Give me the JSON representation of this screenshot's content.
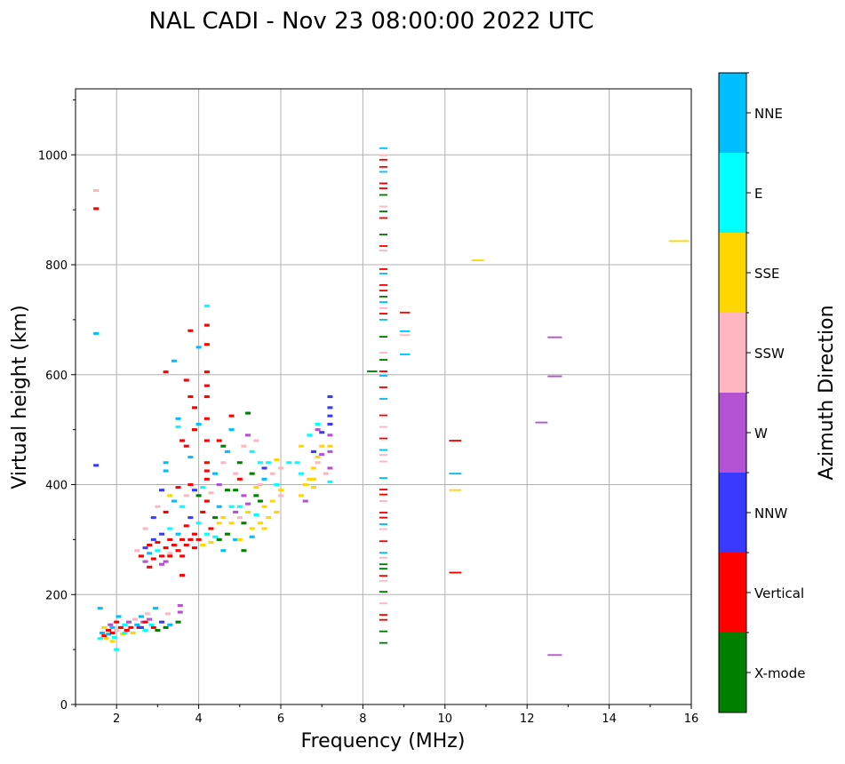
{
  "chart_data": {
    "type": "heatmap",
    "title": "NAL CADI - Nov 23 08:00:00 2022 UTC",
    "xlabel": "Frequency (MHz)",
    "ylabel": "Virtual height (km)",
    "xlim": [
      1,
      16
    ],
    "ylim": [
      0,
      1120
    ],
    "xticks": [
      2,
      4,
      6,
      8,
      10,
      12,
      14,
      16
    ],
    "yticks": [
      0,
      200,
      400,
      600,
      800,
      1000
    ],
    "grid": true,
    "colorbar": {
      "label": "Azimuth Direction",
      "categories": [
        "X-mode",
        "Vertical",
        "NNW",
        "W",
        "SSW",
        "SSE",
        "E",
        "NNE"
      ],
      "colors": [
        "#008000",
        "#ff0000",
        "#3a3aff",
        "#b452d4",
        "#ffb6c1",
        "#ffd700",
        "#00ffff",
        "#00bfff"
      ]
    },
    "bin_width_mhz": 0.13,
    "bin_height_km": 5,
    "cells": [
      [
        1.6,
        120,
        6
      ],
      [
        1.65,
        130,
        7
      ],
      [
        1.7,
        125,
        1
      ],
      [
        1.7,
        140,
        5
      ],
      [
        1.75,
        120,
        5
      ],
      [
        1.8,
        135,
        1
      ],
      [
        1.8,
        128,
        7
      ],
      [
        1.85,
        145,
        3
      ],
      [
        1.9,
        130,
        1
      ],
      [
        1.9,
        140,
        7
      ],
      [
        1.95,
        122,
        6
      ],
      [
        2.0,
        150,
        1
      ],
      [
        2.0,
        135,
        4
      ],
      [
        2.05,
        160,
        7
      ],
      [
        2.1,
        140,
        1
      ],
      [
        2.15,
        128,
        5
      ],
      [
        2.2,
        145,
        6
      ],
      [
        2.25,
        135,
        1
      ],
      [
        2.3,
        150,
        3
      ],
      [
        2.35,
        140,
        1
      ],
      [
        2.4,
        130,
        5
      ],
      [
        2.45,
        155,
        4
      ],
      [
        2.5,
        145,
        7
      ],
      [
        2.55,
        140,
        1
      ],
      [
        2.6,
        160,
        7
      ],
      [
        2.65,
        150,
        3
      ],
      [
        2.7,
        135,
        6
      ],
      [
        2.75,
        165,
        4
      ],
      [
        2.8,
        155,
        3
      ],
      [
        2.85,
        145,
        6
      ],
      [
        2.9,
        140,
        1
      ],
      [
        2.95,
        175,
        7
      ],
      [
        3.0,
        135,
        0
      ],
      [
        3.1,
        150,
        2
      ],
      [
        3.2,
        140,
        0
      ],
      [
        3.25,
        165,
        4
      ],
      [
        3.3,
        145,
        7
      ],
      [
        3.5,
        150,
        0
      ],
      [
        3.55,
        180,
        3
      ],
      [
        3.55,
        168,
        3
      ],
      [
        1.6,
        175,
        7
      ],
      [
        2.0,
        100,
        6
      ],
      [
        1.9,
        115,
        5
      ],
      [
        2.2,
        130,
        6
      ],
      [
        2.6,
        140,
        2
      ],
      [
        2.7,
        150,
        1
      ],
      [
        2.5,
        280,
        4
      ],
      [
        2.6,
        270,
        1
      ],
      [
        2.7,
        285,
        2
      ],
      [
        2.7,
        260,
        3
      ],
      [
        2.8,
        290,
        1
      ],
      [
        2.8,
        275,
        7
      ],
      [
        2.9,
        265,
        1
      ],
      [
        2.9,
        300,
        2
      ],
      [
        3.0,
        280,
        6
      ],
      [
        3.0,
        295,
        1
      ],
      [
        3.1,
        270,
        1
      ],
      [
        3.1,
        310,
        2
      ],
      [
        3.2,
        285,
        1
      ],
      [
        3.2,
        260,
        3
      ],
      [
        3.3,
        300,
        1
      ],
      [
        3.3,
        320,
        6
      ],
      [
        3.3,
        275,
        4
      ],
      [
        3.4,
        290,
        1
      ],
      [
        3.5,
        280,
        1
      ],
      [
        3.5,
        310,
        7
      ],
      [
        3.6,
        300,
        1
      ],
      [
        3.6,
        270,
        1
      ],
      [
        3.7,
        290,
        1
      ],
      [
        3.7,
        325,
        1
      ],
      [
        3.8,
        300,
        1
      ],
      [
        3.8,
        340,
        2
      ],
      [
        3.9,
        285,
        1
      ],
      [
        3.9,
        310,
        1
      ],
      [
        4.0,
        300,
        1
      ],
      [
        4.0,
        330,
        6
      ],
      [
        4.1,
        290,
        5
      ],
      [
        4.1,
        350,
        1
      ],
      [
        4.2,
        310,
        6
      ],
      [
        4.2,
        370,
        1
      ],
      [
        4.3,
        320,
        1
      ],
      [
        4.3,
        295,
        5
      ],
      [
        4.4,
        340,
        0
      ],
      [
        4.4,
        305,
        6
      ],
      [
        4.5,
        330,
        5
      ],
      [
        4.5,
        360,
        7
      ],
      [
        2.9,
        340,
        2
      ],
      [
        3.0,
        360,
        4
      ],
      [
        3.1,
        390,
        2
      ],
      [
        3.2,
        350,
        1
      ],
      [
        3.3,
        380,
        5
      ],
      [
        3.4,
        370,
        7
      ],
      [
        3.5,
        395,
        1
      ],
      [
        3.6,
        360,
        6
      ],
      [
        3.7,
        380,
        4
      ],
      [
        3.8,
        400,
        1
      ],
      [
        3.9,
        390,
        2
      ],
      [
        4.0,
        380,
        0
      ],
      [
        4.1,
        395,
        6
      ],
      [
        4.2,
        410,
        1
      ],
      [
        4.3,
        385,
        4
      ],
      [
        4.4,
        420,
        7
      ],
      [
        4.5,
        400,
        3
      ],
      [
        2.7,
        320,
        4
      ],
      [
        2.8,
        250,
        1
      ],
      [
        3.2,
        440,
        7
      ],
      [
        3.2,
        425,
        7
      ],
      [
        3.5,
        520,
        7
      ],
      [
        3.5,
        505,
        6
      ],
      [
        3.6,
        480,
        1
      ],
      [
        3.7,
        470,
        1
      ],
      [
        3.7,
        590,
        1
      ],
      [
        3.8,
        560,
        1
      ],
      [
        3.8,
        450,
        7
      ],
      [
        3.9,
        540,
        1
      ],
      [
        3.9,
        500,
        1
      ],
      [
        4.0,
        510,
        7
      ],
      [
        4.2,
        690,
        1
      ],
      [
        4.2,
        655,
        1
      ],
      [
        4.2,
        605,
        1
      ],
      [
        4.2,
        580,
        1
      ],
      [
        4.2,
        560,
        1
      ],
      [
        4.2,
        520,
        1
      ],
      [
        4.2,
        480,
        1
      ],
      [
        4.2,
        440,
        1
      ],
      [
        4.2,
        425,
        1
      ],
      [
        3.4,
        625,
        7
      ],
      [
        3.2,
        605,
        1
      ],
      [
        3.8,
        680,
        1
      ],
      [
        4.0,
        650,
        7
      ],
      [
        4.2,
        725,
        6
      ],
      [
        3.6,
        235,
        1
      ],
      [
        3.3,
        270,
        1
      ],
      [
        3.1,
        255,
        3
      ],
      [
        4.5,
        480,
        1
      ],
      [
        4.6,
        440,
        4
      ],
      [
        4.6,
        470,
        0
      ],
      [
        4.7,
        460,
        7
      ],
      [
        4.8,
        525,
        1
      ],
      [
        4.8,
        500,
        7
      ],
      [
        4.9,
        420,
        4
      ],
      [
        4.9,
        390,
        0
      ],
      [
        5.0,
        440,
        0
      ],
      [
        5.0,
        410,
        1
      ],
      [
        5.1,
        470,
        4
      ],
      [
        5.1,
        380,
        3
      ],
      [
        5.2,
        530,
        0
      ],
      [
        5.2,
        490,
        3
      ],
      [
        5.3,
        460,
        6
      ],
      [
        5.3,
        420,
        0
      ],
      [
        5.4,
        480,
        4
      ],
      [
        5.4,
        380,
        0
      ],
      [
        5.5,
        440,
        6
      ],
      [
        5.5,
        400,
        4
      ],
      [
        5.6,
        430,
        2
      ],
      [
        5.6,
        410,
        7
      ],
      [
        5.7,
        440,
        6
      ],
      [
        5.8,
        420,
        4
      ],
      [
        5.9,
        445,
        5
      ],
      [
        6.0,
        430,
        4
      ],
      [
        4.6,
        340,
        5
      ],
      [
        4.7,
        310,
        0
      ],
      [
        4.8,
        330,
        5
      ],
      [
        4.9,
        300,
        7
      ],
      [
        5.0,
        360,
        6
      ],
      [
        5.1,
        330,
        0
      ],
      [
        5.2,
        350,
        5
      ],
      [
        5.3,
        320,
        5
      ],
      [
        5.4,
        345,
        6
      ],
      [
        5.5,
        330,
        5
      ],
      [
        5.6,
        360,
        5
      ],
      [
        5.7,
        340,
        5
      ],
      [
        5.8,
        370,
        5
      ],
      [
        5.9,
        350,
        5
      ],
      [
        6.0,
        390,
        5
      ],
      [
        4.5,
        300,
        0
      ],
      [
        4.6,
        280,
        7
      ],
      [
        4.8,
        360,
        6
      ],
      [
        5.0,
        300,
        5
      ],
      [
        5.1,
        280,
        0
      ],
      [
        5.3,
        305,
        7
      ],
      [
        5.5,
        370,
        0
      ],
      [
        5.6,
        320,
        5
      ],
      [
        5.9,
        400,
        6
      ],
      [
        6.0,
        380,
        4
      ],
      [
        5.0,
        340,
        4
      ],
      [
        5.2,
        365,
        3
      ],
      [
        5.4,
        395,
        5
      ],
      [
        4.7,
        390,
        0
      ],
      [
        4.9,
        350,
        3
      ],
      [
        6.4,
        440,
        6
      ],
      [
        6.5,
        470,
        5
      ],
      [
        6.5,
        380,
        5
      ],
      [
        6.5,
        420,
        6
      ],
      [
        6.6,
        400,
        5
      ],
      [
        6.6,
        370,
        3
      ],
      [
        6.7,
        490,
        6
      ],
      [
        6.8,
        460,
        2
      ],
      [
        6.8,
        430,
        5
      ],
      [
        6.8,
        410,
        5
      ],
      [
        6.8,
        395,
        5
      ],
      [
        6.9,
        500,
        3
      ],
      [
        6.9,
        450,
        5
      ],
      [
        6.9,
        440,
        4
      ],
      [
        7.0,
        495,
        2
      ],
      [
        7.0,
        470,
        5
      ],
      [
        7.0,
        455,
        3
      ],
      [
        7.1,
        420,
        4
      ],
      [
        7.2,
        560,
        2
      ],
      [
        7.2,
        540,
        2
      ],
      [
        7.2,
        525,
        2
      ],
      [
        7.2,
        510,
        2
      ],
      [
        7.2,
        490,
        3
      ],
      [
        7.2,
        470,
        5
      ],
      [
        7.2,
        460,
        3
      ],
      [
        7.2,
        430,
        3
      ],
      [
        7.2,
        405,
        6
      ],
      [
        6.2,
        440,
        6
      ],
      [
        6.7,
        410,
        5
      ],
      [
        6.9,
        510,
        6
      ],
      [
        1.5,
        935,
        4
      ],
      [
        1.5,
        902,
        1
      ],
      [
        1.5,
        675,
        7
      ],
      [
        1.5,
        435,
        2
      ]
    ],
    "segment_height_km": 3,
    "segments": [
      [
        8.4,
        8.6,
        1012,
        7
      ],
      [
        8.4,
        8.6,
        999,
        4
      ],
      [
        8.4,
        8.6,
        991,
        1
      ],
      [
        8.4,
        8.6,
        978,
        1
      ],
      [
        8.4,
        8.6,
        969,
        7
      ],
      [
        8.4,
        8.6,
        948,
        1
      ],
      [
        8.4,
        8.6,
        939,
        1
      ],
      [
        8.4,
        8.6,
        927,
        0
      ],
      [
        8.4,
        8.6,
        906,
        4
      ],
      [
        8.4,
        8.6,
        897,
        0
      ],
      [
        8.4,
        8.6,
        885,
        1
      ],
      [
        8.4,
        8.6,
        855,
        0
      ],
      [
        8.4,
        8.6,
        834,
        1
      ],
      [
        8.4,
        8.6,
        826,
        4
      ],
      [
        8.4,
        8.6,
        792,
        1
      ],
      [
        8.4,
        8.6,
        784,
        7
      ],
      [
        8.4,
        8.6,
        763,
        1
      ],
      [
        8.4,
        8.6,
        753,
        1
      ],
      [
        8.4,
        8.6,
        742,
        0
      ],
      [
        8.4,
        8.6,
        732,
        7
      ],
      [
        8.4,
        8.6,
        721,
        4
      ],
      [
        8.4,
        8.6,
        711,
        1
      ],
      [
        8.4,
        8.6,
        700,
        7
      ],
      [
        8.4,
        8.6,
        669,
        0
      ],
      [
        8.4,
        8.6,
        640,
        4
      ],
      [
        8.4,
        8.6,
        627,
        0
      ],
      [
        8.4,
        8.6,
        606,
        1
      ],
      [
        8.1,
        8.35,
        606,
        0
      ],
      [
        8.4,
        8.6,
        598,
        7
      ],
      [
        8.4,
        8.6,
        577,
        1
      ],
      [
        8.4,
        8.6,
        556,
        7
      ],
      [
        8.4,
        8.6,
        526,
        1
      ],
      [
        8.4,
        8.6,
        505,
        4
      ],
      [
        8.4,
        8.6,
        484,
        1
      ],
      [
        8.4,
        8.6,
        463,
        7
      ],
      [
        8.4,
        8.6,
        454,
        4
      ],
      [
        8.4,
        8.6,
        442,
        4
      ],
      [
        8.4,
        8.6,
        412,
        7
      ],
      [
        8.4,
        8.6,
        391,
        1
      ],
      [
        8.4,
        8.6,
        382,
        1
      ],
      [
        8.4,
        8.6,
        370,
        4
      ],
      [
        8.4,
        8.6,
        349,
        1
      ],
      [
        8.4,
        8.6,
        340,
        1
      ],
      [
        8.4,
        8.6,
        328,
        7
      ],
      [
        8.4,
        8.6,
        319,
        4
      ],
      [
        8.4,
        8.6,
        297,
        1
      ],
      [
        8.4,
        8.6,
        276,
        7
      ],
      [
        8.4,
        8.6,
        267,
        4
      ],
      [
        8.4,
        8.6,
        255,
        0
      ],
      [
        8.4,
        8.6,
        247,
        0
      ],
      [
        8.4,
        8.6,
        234,
        1
      ],
      [
        8.4,
        8.6,
        225,
        4
      ],
      [
        8.4,
        8.6,
        205,
        0
      ],
      [
        8.4,
        8.6,
        184,
        4
      ],
      [
        8.4,
        8.6,
        163,
        1
      ],
      [
        8.4,
        8.6,
        154,
        1
      ],
      [
        8.4,
        8.6,
        133,
        0
      ],
      [
        8.4,
        8.6,
        112,
        0
      ],
      [
        8.9,
        9.15,
        713,
        1
      ],
      [
        8.9,
        9.15,
        679,
        7
      ],
      [
        8.9,
        9.15,
        672,
        4
      ],
      [
        8.9,
        9.15,
        637,
        7
      ],
      [
        10.1,
        10.4,
        480,
        1
      ],
      [
        10.1,
        10.4,
        420,
        7
      ],
      [
        10.1,
        10.4,
        390,
        5
      ],
      [
        10.1,
        10.4,
        240,
        1
      ],
      [
        10.65,
        10.95,
        808,
        5
      ],
      [
        15.45,
        15.95,
        843,
        5
      ],
      [
        12.5,
        12.85,
        668,
        3
      ],
      [
        12.5,
        12.85,
        597,
        3
      ],
      [
        12.2,
        12.5,
        513,
        3
      ],
      [
        12.5,
        12.85,
        90,
        3
      ]
    ]
  }
}
